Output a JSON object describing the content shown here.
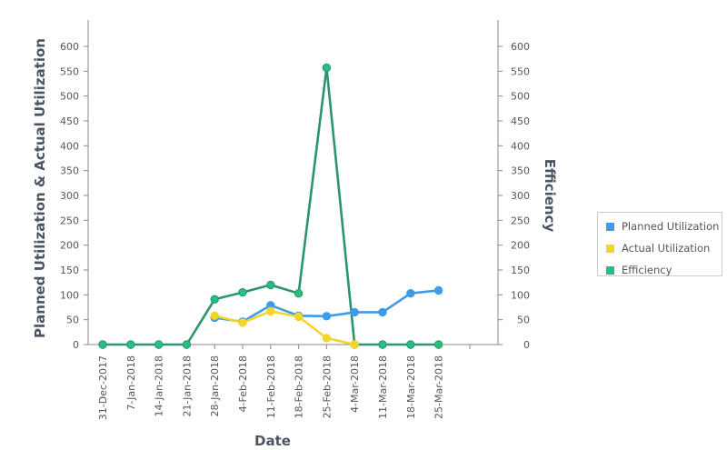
{
  "chart_data": {
    "type": "line",
    "x_label": "Date",
    "y_left_label": "Planned Utilization & Actual Utilization",
    "y_right_label": "Efficiency",
    "categories": [
      "31-Dec-2017",
      "7-Jan-2018",
      "14-Jan-2018",
      "21-Jan-2018",
      "28-Jan-2018",
      "4-Feb-2018",
      "11-Feb-2018",
      "18-Feb-2018",
      "25-Feb-2018",
      "4-Mar-2018",
      "11-Mar-2018",
      "18-Mar-2018",
      "25-Mar-2018"
    ],
    "y_left_range": [
      0,
      600
    ],
    "y_right_range": [
      0,
      600
    ],
    "y_ticks": [
      0,
      50,
      100,
      150,
      200,
      250,
      300,
      350,
      400,
      450,
      500,
      550,
      600
    ],
    "legend_position": "right",
    "series": [
      {
        "name": "Planned Utilization",
        "color": "#3d9be9",
        "axis": "left",
        "values": [
          null,
          null,
          null,
          null,
          54,
          46,
          79,
          58,
          57,
          65,
          65,
          103,
          109
        ]
      },
      {
        "name": "Actual Utilization",
        "color": "#f2d52b",
        "axis": "left",
        "values": [
          null,
          null,
          null,
          null,
          58,
          44,
          67,
          56,
          13,
          0,
          null,
          null,
          null
        ]
      },
      {
        "name": "Efficiency",
        "color": "#2b9470",
        "marker_color": "#2bbd7e",
        "axis": "right",
        "values": [
          0,
          0,
          0,
          0,
          91,
          105,
          120,
          103,
          557,
          0,
          0,
          0,
          0
        ]
      }
    ]
  }
}
